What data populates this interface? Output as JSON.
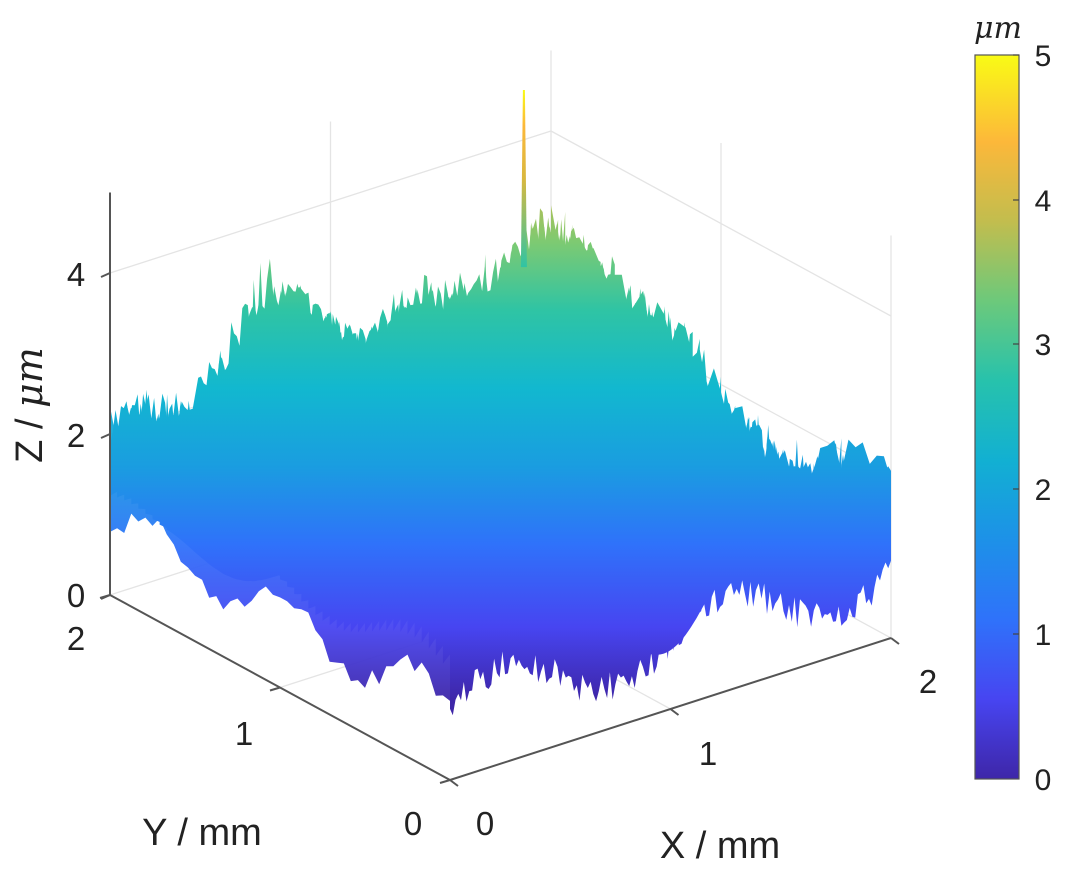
{
  "chart_data": {
    "type": "surface3d",
    "title": "",
    "description": "3D surface topography map of a rough surface, 2 mm x 2 mm, heights colored with parula colormap",
    "xlabel": "X / mm",
    "ylabel": "Y / mm",
    "zlabel": "Z / μm",
    "xlim": [
      0,
      2
    ],
    "ylim": [
      0,
      2
    ],
    "zlim": [
      0,
      5
    ],
    "xticks": [
      "0",
      "1",
      "2"
    ],
    "yticks": [
      "0",
      "1",
      "2"
    ],
    "zticks": [
      "0",
      "2",
      "4"
    ],
    "grid": true,
    "colorbar": {
      "label": "μm",
      "range": [
        0,
        5
      ],
      "ticks": [
        "0",
        "1",
        "2",
        "3",
        "4",
        "5"
      ],
      "colormap": "parula",
      "stops": [
        "#3e26a8",
        "#4745f1",
        "#2f72fa",
        "#1a9de0",
        "#0fbbbf",
        "#38c89a",
        "#8bca6c",
        "#d2ba48",
        "#fdc031",
        "#f9fb15"
      ]
    },
    "surface_summary": {
      "typical_height_um": [
        1.0,
        3.0
      ],
      "mean_height_um": 2.0,
      "max_peak_um": 4.8,
      "peak_location_mm": {
        "x": 1.8,
        "y": 1.9
      },
      "min_valley_um": 0.5,
      "texture": "ridged, parallel ridges running along Y direction with jagged peaks"
    }
  },
  "axes": {
    "x_label": "X / mm",
    "y_label": "Y / mm",
    "z_label_prefix": "Z / ",
    "z_label_unit": "μm",
    "x_ticks": [
      "0",
      "1",
      "2"
    ],
    "y_ticks": [
      "0",
      "1",
      "2"
    ],
    "z_ticks": [
      "0",
      "2",
      "4"
    ]
  },
  "colorbar": {
    "unit": "μm",
    "ticks": [
      "0",
      "1",
      "2",
      "3",
      "4",
      "5"
    ]
  }
}
